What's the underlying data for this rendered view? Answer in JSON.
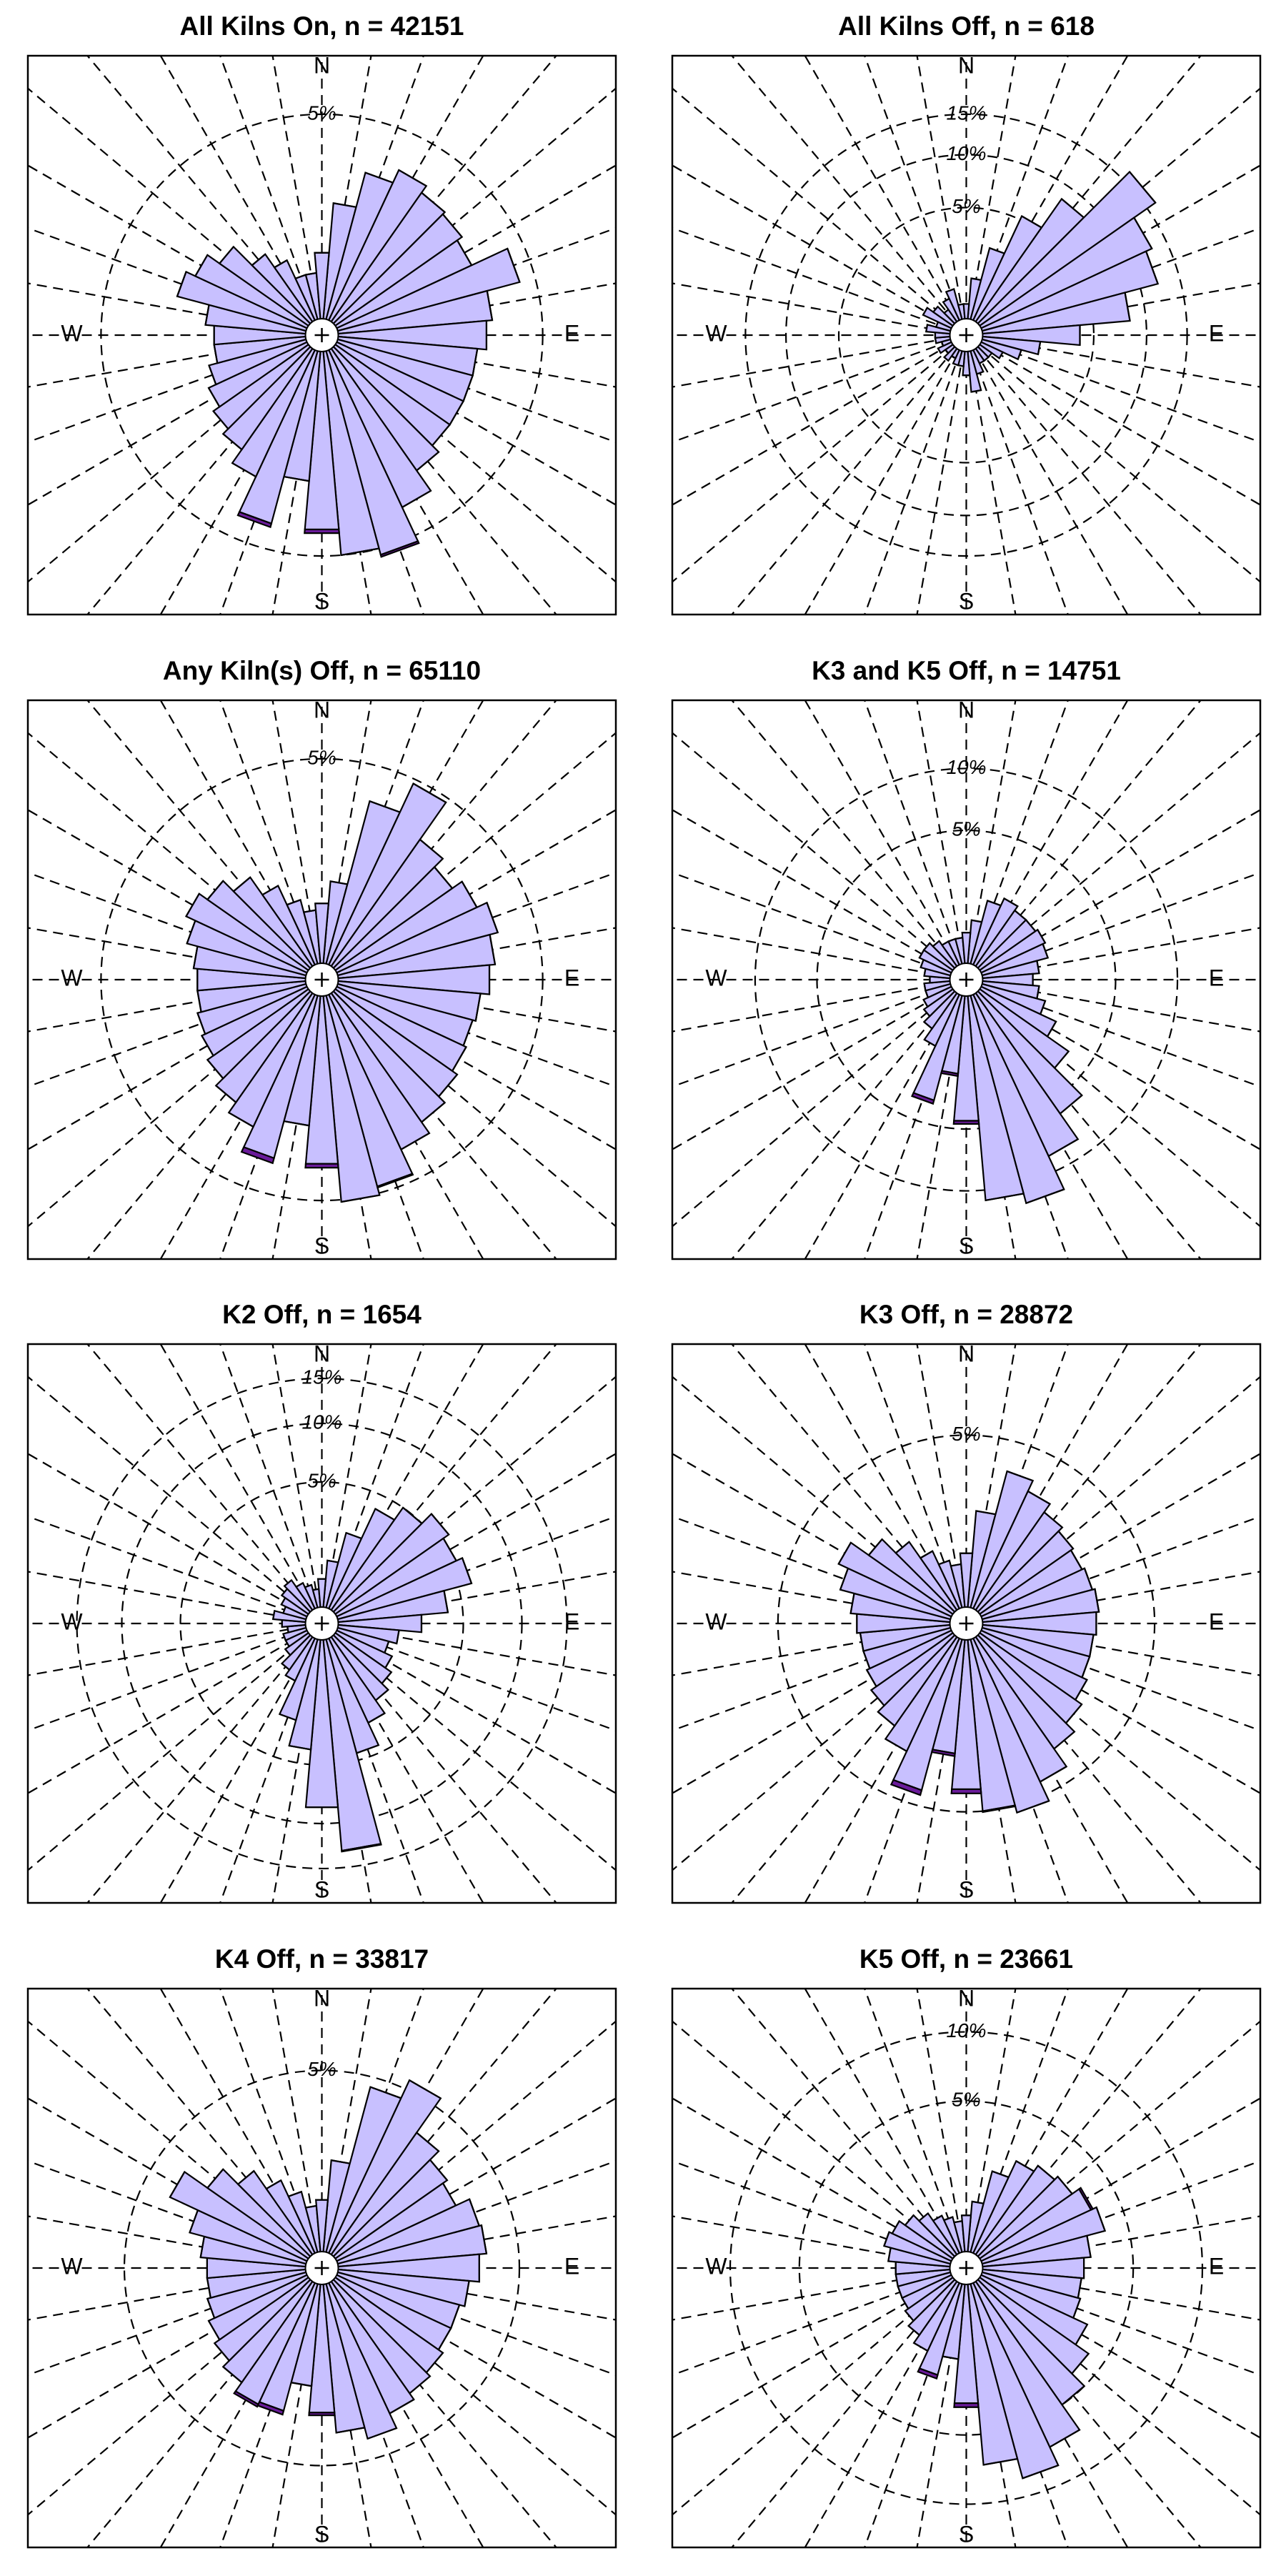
{
  "chart_data": [
    {
      "type": "windrose",
      "title": "All Kilns On, n = 42151",
      "scale": "sqrt",
      "compass_labels": [
        "N",
        "E",
        "S",
        "W"
      ],
      "x": [
        10,
        20,
        30,
        40,
        50,
        60,
        70,
        80,
        90,
        100,
        110,
        120,
        130,
        140,
        150,
        160,
        170,
        180,
        190,
        200,
        210,
        220,
        230,
        240,
        250,
        260,
        270,
        280,
        290,
        300,
        310,
        320,
        330,
        340,
        350,
        360
      ],
      "rlim": [
        0,
        8
      ],
      "rticks": [
        {
          "value": 5,
          "label": "5%"
        }
      ],
      "series": [
        {
          "color": "#c8c0ff",
          "values": [
            1.8,
            2.9,
            3.4,
            3.1,
            3.0,
            2.8,
            4.3,
            3.0,
            2.8,
            2.5,
            2.5,
            2.5,
            2.5,
            2.8,
            3.7,
            5.3,
            5.0,
            3.9,
            2.2,
            3.9,
            2.5,
            2.0,
            1.8,
            1.6,
            1.4,
            1.2,
            1.2,
            1.4,
            2.3,
            2.0,
            1.6,
            1.0,
            0.7,
            0.4,
            0.4,
            0.7
          ]
        },
        {
          "color": "#6a1b9a",
          "values": [
            0,
            0,
            0,
            0,
            0,
            0,
            0,
            0,
            0,
            0,
            0,
            0,
            0,
            0,
            0,
            0.1,
            0,
            0.15,
            0,
            0.15,
            0,
            0,
            0,
            0,
            0,
            0,
            0,
            0,
            0,
            0,
            0,
            0,
            0,
            0,
            0,
            0
          ]
        }
      ]
    },
    {
      "type": "windrose",
      "title": "All Kilns Off, n = 618",
      "scale": "sqrt",
      "compass_labels": [
        "N",
        "E",
        "S",
        "W"
      ],
      "x": [
        10,
        20,
        30,
        40,
        50,
        60,
        70,
        80,
        90,
        100,
        110,
        120,
        130,
        140,
        150,
        160,
        170,
        180,
        190,
        200,
        210,
        220,
        230,
        240,
        250,
        260,
        270,
        280,
        290,
        300,
        310,
        320,
        330,
        340,
        350,
        360
      ],
      "rlim": [
        0,
        24
      ],
      "rticks": [
        {
          "value": 5,
          "label": "5%"
        },
        {
          "value": 10,
          "label": "10%"
        },
        {
          "value": 15,
          "label": "15%"
        }
      ],
      "series": [
        {
          "color": "#c8c0ff",
          "values": [
            1.0,
            2.5,
            5.3,
            8.5,
            16.4,
            12.9,
            12.1,
            8.3,
            4.0,
            1.7,
            1.0,
            0.5,
            0.3,
            0.3,
            0.3,
            0.5,
            1.0,
            0.5,
            0.3,
            0.3,
            0.2,
            0.3,
            0.2,
            0.3,
            0.2,
            0.3,
            0.3,
            0.5,
            0.3,
            0.7,
            0.5,
            0.3,
            0.5,
            0.7,
            0.3,
            0.3
          ]
        },
        {
          "color": "#6a1b9a",
          "values": [
            0,
            0,
            0,
            0,
            0,
            0,
            0,
            0,
            0,
            0,
            0,
            0,
            0,
            0,
            0,
            0,
            0,
            0,
            0,
            0,
            0,
            0,
            0,
            0,
            0,
            0,
            0,
            0,
            0,
            0,
            0,
            0,
            0,
            0,
            0,
            0
          ]
        }
      ]
    },
    {
      "type": "windrose",
      "title": "Any Kiln(s) Off, n = 65110",
      "scale": "sqrt",
      "compass_labels": [
        "N",
        "E",
        "S",
        "W"
      ],
      "x": [
        10,
        20,
        30,
        40,
        50,
        60,
        70,
        80,
        90,
        100,
        110,
        120,
        130,
        140,
        150,
        160,
        170,
        180,
        190,
        200,
        210,
        220,
        230,
        240,
        250,
        260,
        270,
        280,
        290,
        300,
        310,
        320,
        330,
        340,
        350,
        360
      ],
      "rlim": [
        0,
        8
      ],
      "rticks": [
        {
          "value": 5,
          "label": "5%"
        }
      ],
      "series": [
        {
          "color": "#c8c0ff",
          "values": [
            1.0,
            3.5,
            4.8,
            3.0,
            2.6,
            3.0,
            3.4,
            3.1,
            2.9,
            2.6,
            2.5,
            2.6,
            2.8,
            3.1,
            3.6,
            4.7,
            5.1,
            3.5,
            2.2,
            3.5,
            2.7,
            2.3,
            2.0,
            1.8,
            1.7,
            1.6,
            1.6,
            1.7,
            2.0,
            2.3,
            2.0,
            1.6,
            1.1,
            0.7,
            0.5,
            0.6
          ]
        },
        {
          "color": "#6a1b9a",
          "values": [
            0,
            0,
            0,
            0,
            0,
            0,
            0,
            0,
            0,
            0,
            0,
            0,
            0,
            0,
            0,
            0.05,
            0,
            0.15,
            0,
            0.2,
            0,
            0,
            0,
            0,
            0,
            0,
            0,
            0,
            0,
            0,
            0,
            0,
            0,
            0,
            0,
            0
          ]
        }
      ]
    },
    {
      "type": "windrose",
      "title": "K3 and K5 Off, n = 14751",
      "scale": "sqrt",
      "compass_labels": [
        "N",
        "E",
        "S",
        "W"
      ],
      "x": [
        10,
        20,
        30,
        40,
        50,
        60,
        70,
        80,
        90,
        100,
        110,
        120,
        130,
        140,
        150,
        160,
        170,
        180,
        190,
        200,
        210,
        220,
        230,
        240,
        250,
        260,
        270,
        280,
        290,
        300,
        310,
        320,
        330,
        340,
        350,
        360
      ],
      "rlim": [
        0,
        17.5
      ],
      "rticks": [
        {
          "value": 5,
          "label": "5%"
        },
        {
          "value": 10,
          "label": "10%"
        }
      ],
      "series": [
        {
          "color": "#c8c0ff",
          "values": [
            0.8,
            1.5,
            1.8,
            1.6,
            1.6,
            1.7,
            1.6,
            1.2,
            1.0,
            1.2,
            1.5,
            2.2,
            3.5,
            6.0,
            8.5,
            12.0,
            11.0,
            4.5,
            2.0,
            3.5,
            1.2,
            0.8,
            0.6,
            0.5,
            0.4,
            0.4,
            0.3,
            0.4,
            0.5,
            0.6,
            0.6,
            0.5,
            0.4,
            0.4,
            0.4,
            0.5
          ]
        },
        {
          "color": "#6a1b9a",
          "values": [
            0,
            0,
            0,
            0,
            0,
            0,
            0,
            0,
            0,
            0,
            0,
            0,
            0,
            0,
            0,
            0,
            0,
            0.2,
            0.1,
            0.2,
            0,
            0,
            0,
            0,
            0,
            0,
            0,
            0,
            0,
            0,
            0,
            0,
            0,
            0,
            0,
            0
          ]
        }
      ]
    },
    {
      "type": "windrose",
      "title": "K2 Off, n = 1654",
      "scale": "sqrt",
      "compass_labels": [
        "N",
        "E",
        "S",
        "W"
      ],
      "x": [
        10,
        20,
        30,
        40,
        50,
        60,
        70,
        80,
        90,
        100,
        110,
        120,
        130,
        140,
        150,
        160,
        170,
        180,
        190,
        200,
        210,
        220,
        230,
        240,
        250,
        260,
        270,
        280,
        290,
        300,
        310,
        320,
        330,
        340,
        350,
        360
      ],
      "rlim": [
        0,
        19.5
      ],
      "rticks": [
        {
          "value": 5,
          "label": "5%"
        },
        {
          "value": 10,
          "label": "10%"
        },
        {
          "value": 15,
          "label": "15%"
        }
      ],
      "series": [
        {
          "color": "#c8c0ff",
          "values": [
            1.0,
            2.2,
            4.0,
            5.0,
            6.0,
            5.5,
            6.0,
            4.0,
            2.5,
            1.5,
            1.2,
            1.5,
            1.8,
            2.2,
            3.0,
            4.5,
            13.0,
            8.5,
            4.0,
            2.5,
            1.0,
            0.8,
            0.5,
            0.4,
            0.4,
            0.3,
            0.4,
            0.6,
            0.4,
            0.5,
            0.6,
            0.7,
            0.5,
            0.4,
            0.3,
            0.5
          ]
        },
        {
          "color": "#6a1b9a",
          "values": [
            0,
            0,
            0,
            0,
            0,
            0,
            0,
            0,
            0,
            0,
            0,
            0,
            0,
            0,
            0,
            0,
            0.1,
            0,
            0,
            0,
            0,
            0,
            0,
            0,
            0,
            0,
            0,
            0,
            0,
            0,
            0,
            0,
            0,
            0,
            0,
            0
          ]
        }
      ]
    },
    {
      "type": "windrose",
      "title": "K3 Off, n = 28872",
      "scale": "sqrt",
      "compass_labels": [
        "N",
        "E",
        "S",
        "W"
      ],
      "x": [
        10,
        20,
        30,
        40,
        50,
        60,
        70,
        80,
        90,
        100,
        110,
        120,
        130,
        140,
        150,
        160,
        170,
        180,
        190,
        200,
        210,
        220,
        230,
        240,
        250,
        260,
        270,
        280,
        290,
        300,
        310,
        320,
        330,
        340,
        350,
        360
      ],
      "rlim": [
        0,
        11
      ],
      "rticks": [
        {
          "value": 5,
          "label": "5%"
        }
      ],
      "series": [
        {
          "color": "#c8c0ff",
          "values": [
            1.8,
            3.5,
            3.0,
            2.6,
            2.4,
            2.3,
            2.4,
            2.5,
            2.4,
            2.3,
            2.3,
            2.5,
            2.8,
            3.3,
            4.3,
            5.4,
            5.0,
            3.9,
            2.4,
            4.2,
            2.8,
            2.2,
            1.9,
            1.7,
            1.6,
            1.6,
            1.7,
            1.9,
            2.4,
            2.8,
            2.0,
            1.4,
            0.9,
            0.6,
            0.5,
            0.7
          ]
        },
        {
          "color": "#6a1b9a",
          "values": [
            0,
            0,
            0,
            0,
            0,
            0,
            0,
            0,
            0,
            0,
            0,
            0,
            0,
            0,
            0,
            0,
            0.05,
            0.2,
            0.1,
            0.25,
            0,
            0,
            0,
            0,
            0,
            0,
            0,
            0,
            0,
            0,
            0,
            0,
            0,
            0,
            0,
            0
          ]
        }
      ]
    },
    {
      "type": "windrose",
      "title": "K4 Off, n = 33817",
      "scale": "sqrt",
      "compass_labels": [
        "N",
        "E",
        "S",
        "W"
      ],
      "x": [
        10,
        20,
        30,
        40,
        50,
        60,
        70,
        80,
        90,
        100,
        110,
        120,
        130,
        140,
        150,
        160,
        170,
        180,
        190,
        200,
        210,
        220,
        230,
        240,
        250,
        260,
        270,
        280,
        290,
        300,
        310,
        320,
        330,
        340,
        350,
        360
      ],
      "rlim": [
        0,
        10
      ],
      "rticks": [
        {
          "value": 5,
          "label": "5%"
        }
      ],
      "series": [
        {
          "color": "#c8c0ff",
          "values": [
            1.5,
            4.5,
            5.5,
            3.5,
            3.0,
            2.8,
            3.4,
            3.5,
            3.2,
            2.8,
            2.6,
            2.6,
            2.8,
            3.0,
            3.3,
            4.0,
            3.5,
            2.7,
            1.8,
            2.8,
            2.9,
            2.5,
            2.2,
            2.0,
            1.8,
            1.7,
            1.7,
            1.9,
            2.4,
            3.6,
            2.5,
            1.8,
            1.2,
            0.8,
            0.5,
            0.6
          ]
        },
        {
          "color": "#6a1b9a",
          "values": [
            0,
            0,
            0,
            0,
            0,
            0,
            0,
            0,
            0,
            0,
            0,
            0,
            0,
            0,
            0,
            0,
            0,
            0.1,
            0,
            0.15,
            0.1,
            0,
            0,
            0,
            0,
            0,
            0,
            0,
            0,
            0,
            0,
            0,
            0,
            0,
            0,
            0
          ]
        }
      ]
    },
    {
      "type": "windrose",
      "title": "K5 Off, n = 23661",
      "scale": "sqrt",
      "compass_labels": [
        "N",
        "E",
        "S",
        "W"
      ],
      "x": [
        10,
        20,
        30,
        40,
        50,
        60,
        70,
        80,
        90,
        100,
        110,
        120,
        130,
        140,
        150,
        160,
        170,
        180,
        190,
        200,
        210,
        220,
        230,
        240,
        250,
        260,
        270,
        280,
        290,
        300,
        310,
        320,
        330,
        340,
        350,
        360
      ],
      "rlim": [
        0,
        14
      ],
      "rticks": [
        {
          "value": 5,
          "label": "5%"
        },
        {
          "value": 10,
          "label": "10%"
        }
      ],
      "series": [
        {
          "color": "#c8c0ff",
          "values": [
            0.8,
            1.8,
            2.5,
            2.8,
            3.0,
            3.4,
            3.7,
            2.8,
            2.5,
            2.4,
            2.5,
            3.2,
            4.0,
            5.0,
            7.0,
            8.5,
            7.0,
            3.3,
            1.5,
            2.2,
            1.5,
            1.2,
            1.0,
            0.9,
            0.9,
            0.9,
            0.9,
            1.1,
            1.3,
            1.2,
            1.0,
            0.8,
            0.6,
            0.5,
            0.4,
            0.5
          ]
        },
        {
          "color": "#6a1b9a",
          "values": [
            0,
            0,
            0,
            0,
            0,
            0.1,
            0,
            0,
            0,
            0,
            0,
            0,
            0,
            0,
            0,
            0,
            0,
            0.2,
            0,
            0.15,
            0,
            0,
            0,
            0,
            0,
            0,
            0,
            0,
            0,
            0,
            0,
            0,
            0,
            0,
            0,
            0
          ]
        }
      ]
    }
  ]
}
